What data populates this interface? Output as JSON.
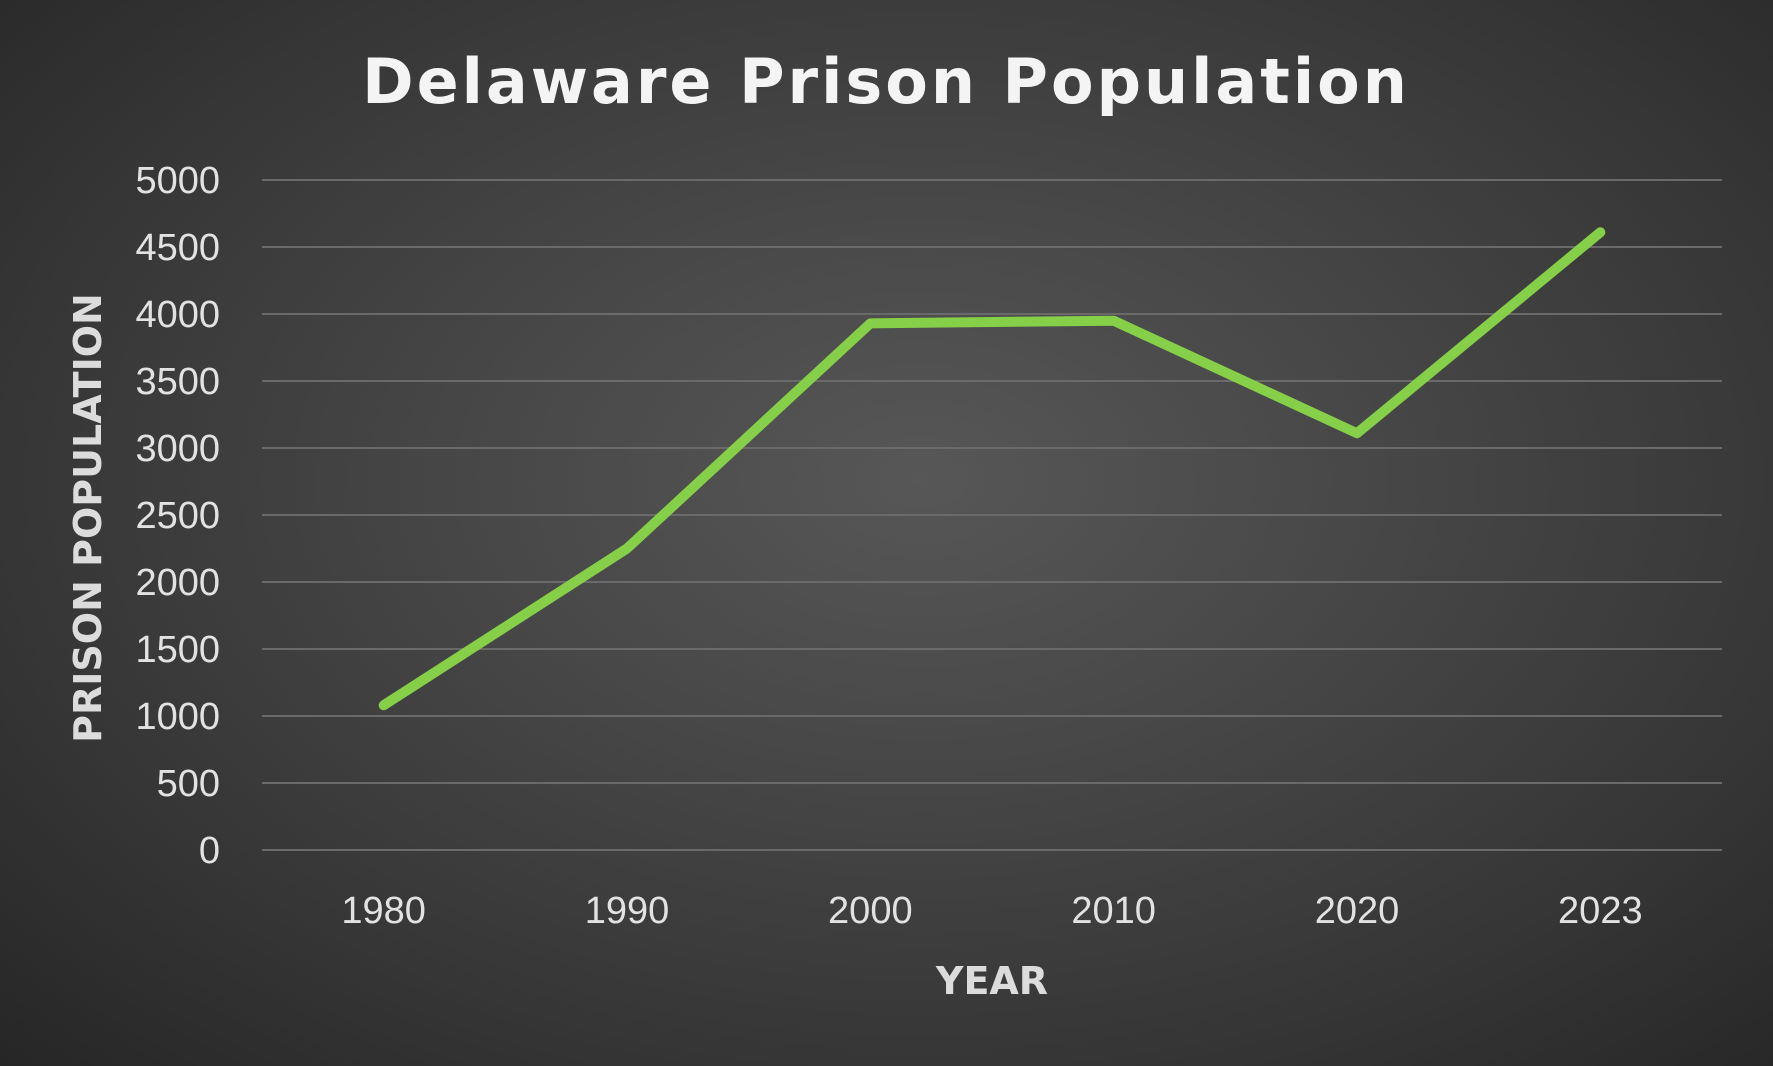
{
  "chart_data": {
    "type": "line",
    "title": "Delaware Prison Population",
    "xlabel": "YEAR",
    "ylabel": "PRISON POPULATION",
    "categories": [
      "1980",
      "1990",
      "2000",
      "2010",
      "2020",
      "2023"
    ],
    "series": [
      {
        "values": [
          1080,
          2250,
          3930,
          3950,
          3110,
          4610
        ],
        "color": "#86cf48"
      }
    ],
    "ylim": [
      0,
      5000
    ],
    "yticks": [
      "0",
      "500",
      "1000",
      "1500",
      "2000",
      "2500",
      "3000",
      "3500",
      "4000",
      "4500",
      "5000"
    ],
    "grid": true,
    "legend": "none"
  }
}
